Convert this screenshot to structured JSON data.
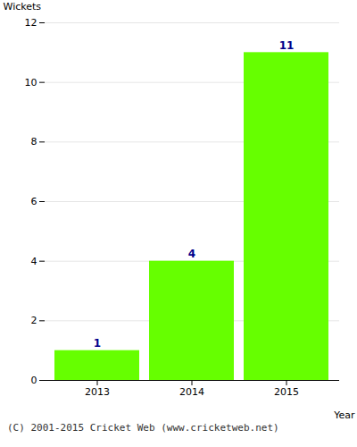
{
  "chart_data": {
    "type": "bar",
    "categories": [
      "2013",
      "2014",
      "2015"
    ],
    "values": [
      1,
      4,
      11
    ],
    "color": "#66ff00",
    "xlabel": "Year",
    "ylabel": "Wickets",
    "ylim": [
      0,
      12
    ],
    "yticks": [
      0,
      2,
      4,
      6,
      8,
      10,
      12
    ],
    "grid": true,
    "data_labels": true,
    "annotations": [
      "(C) 2001-2015 Cricket Web (www.cricketweb.net)"
    ]
  }
}
